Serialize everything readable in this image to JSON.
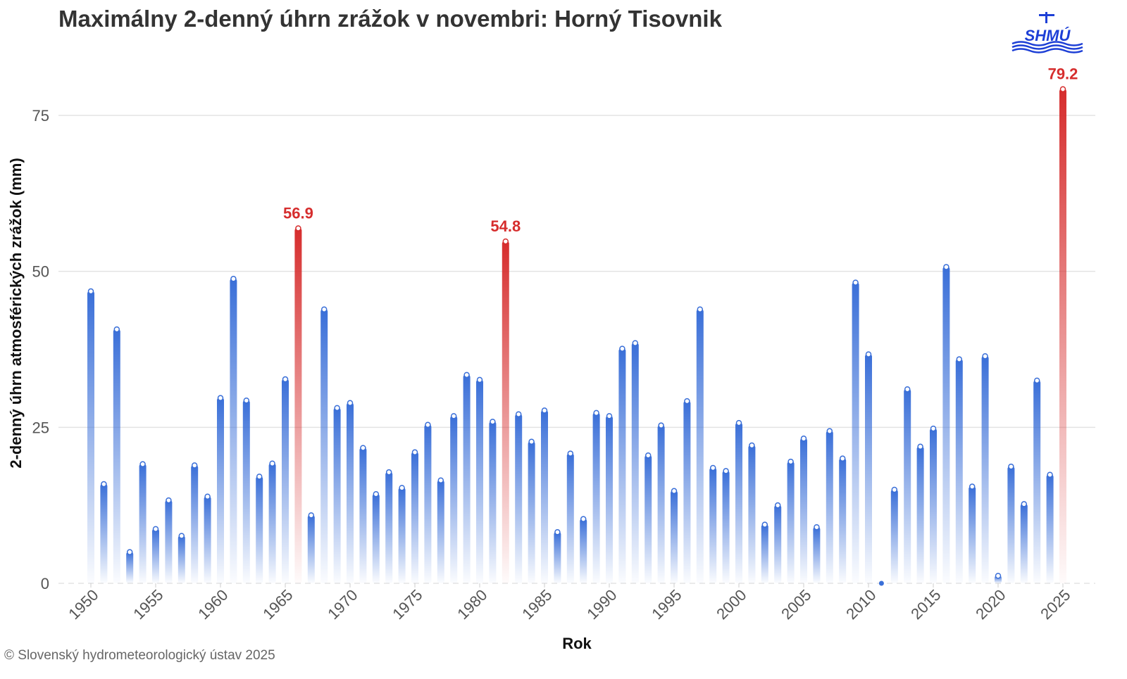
{
  "chart_data": {
    "type": "bar",
    "title": "Maximálny 2-denný úhrn zrážok v novembri: Horný Tisovnik",
    "x_label": "Rok",
    "y_label": "2-denný úhrn atmosférických zrážok (mm)",
    "credit": "© Slovenský hydrometeorologický ústav 2025",
    "logo_text": "SHMÚ",
    "x": [
      1950,
      1951,
      1952,
      1953,
      1954,
      1955,
      1956,
      1957,
      1958,
      1959,
      1960,
      1961,
      1962,
      1963,
      1964,
      1965,
      1966,
      1967,
      1968,
      1969,
      1970,
      1971,
      1972,
      1973,
      1974,
      1975,
      1976,
      1977,
      1978,
      1979,
      1980,
      1981,
      1982,
      1983,
      1984,
      1985,
      1986,
      1987,
      1988,
      1989,
      1990,
      1991,
      1992,
      1993,
      1994,
      1995,
      1996,
      1997,
      1998,
      1999,
      2000,
      2001,
      2002,
      2003,
      2004,
      2005,
      2006,
      2007,
      2008,
      2009,
      2010,
      2011,
      2012,
      2013,
      2014,
      2015,
      2016,
      2017,
      2018,
      2019,
      2020,
      2021,
      2022,
      2023,
      2024,
      2025
    ],
    "values": [
      46.8,
      15.9,
      40.7,
      5.0,
      19.1,
      8.7,
      13.3,
      7.6,
      18.9,
      13.9,
      29.7,
      48.8,
      29.3,
      17.1,
      19.2,
      32.7,
      56.9,
      10.9,
      43.9,
      28.1,
      28.9,
      21.7,
      14.3,
      17.8,
      15.3,
      21.0,
      25.4,
      16.5,
      26.8,
      33.4,
      32.6,
      25.9,
      54.8,
      27.1,
      22.7,
      27.7,
      8.2,
      20.8,
      10.3,
      27.3,
      26.8,
      37.6,
      38.5,
      20.5,
      25.3,
      14.8,
      29.2,
      43.9,
      18.5,
      18.0,
      25.7,
      22.1,
      9.4,
      12.5,
      19.5,
      23.2,
      9.0,
      24.4,
      20.0,
      48.2,
      36.7,
      0,
      15.0,
      31.1,
      21.9,
      24.8,
      50.7,
      35.9,
      15.5,
      36.4,
      1.2,
      18.7,
      12.7,
      32.5,
      17.4,
      79.2
    ],
    "colors": [
      "#3a6fd8",
      "#3a6fd8",
      "#3a6fd8",
      "#3a6fd8",
      "#3a6fd8",
      "#3a6fd8",
      "#3a6fd8",
      "#3a6fd8",
      "#3a6fd8",
      "#3a6fd8",
      "#3a6fd8",
      "#3a6fd8",
      "#3a6fd8",
      "#3a6fd8",
      "#3a6fd8",
      "#3a6fd8",
      "#d62d2d",
      "#3a6fd8",
      "#3a6fd8",
      "#3a6fd8",
      "#3a6fd8",
      "#3a6fd8",
      "#3a6fd8",
      "#3a6fd8",
      "#3a6fd8",
      "#3a6fd8",
      "#3a6fd8",
      "#3a6fd8",
      "#3a6fd8",
      "#3a6fd8",
      "#3a6fd8",
      "#3a6fd8",
      "#d62d2d",
      "#3a6fd8",
      "#3a6fd8",
      "#3a6fd8",
      "#3a6fd8",
      "#3a6fd8",
      "#3a6fd8",
      "#3a6fd8",
      "#3a6fd8",
      "#3a6fd8",
      "#3a6fd8",
      "#3a6fd8",
      "#3a6fd8",
      "#3a6fd8",
      "#3a6fd8",
      "#3a6fd8",
      "#3a6fd8",
      "#3a6fd8",
      "#3a6fd8",
      "#3a6fd8",
      "#3a6fd8",
      "#3a6fd8",
      "#3a6fd8",
      "#3a6fd8",
      "#3a6fd8",
      "#3a6fd8",
      "#3a6fd8",
      "#3a6fd8",
      "#3a6fd8",
      "#3a6fd8",
      "#3a6fd8",
      "#3a6fd8",
      "#3a6fd8",
      "#3a6fd8",
      "#3a6fd8",
      "#3a6fd8",
      "#3a6fd8",
      "#3a6fd8",
      "#3a6fd8",
      "#3a6fd8",
      "#3a6fd8",
      "#3a6fd8",
      "#3a6fd8",
      "#d62d2d"
    ],
    "label_color": "#d62d2d",
    "xlim": [
      1947.5,
      2027.5
    ],
    "xticks": [
      1950,
      1955,
      1960,
      1965,
      1970,
      1975,
      1980,
      1985,
      1990,
      1995,
      2000,
      2005,
      2010,
      2015,
      2020,
      2025
    ],
    "ylim": [
      0,
      85
    ],
    "yticks": [
      0,
      25,
      50,
      75
    ],
    "grid": true
  }
}
